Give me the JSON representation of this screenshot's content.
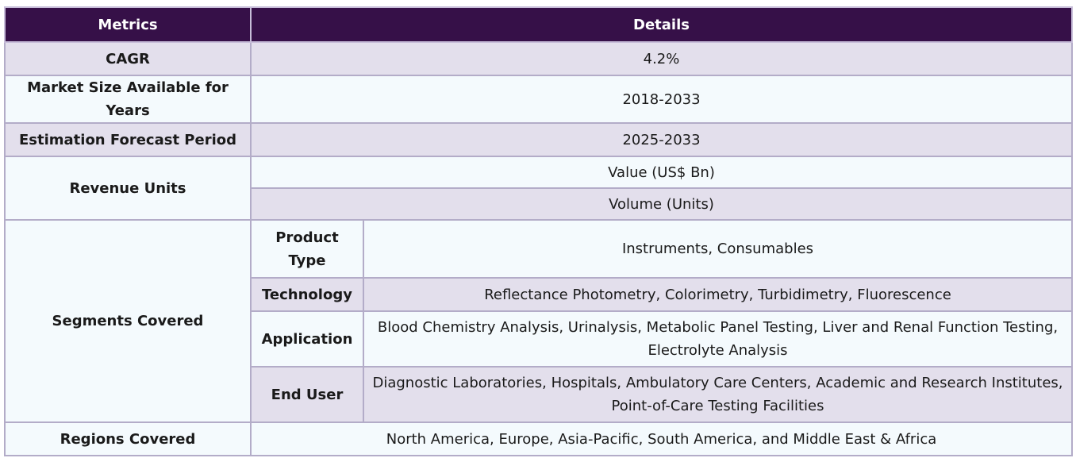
{
  "header": {
    "metrics": "Metrics",
    "details": "Details"
  },
  "rows": {
    "cagr": {
      "label": "CAGR",
      "value": "4.2%"
    },
    "market_size": {
      "label": "Market Size Available for Years",
      "value": "2018-2033"
    },
    "forecast": {
      "label": "Estimation Forecast Period",
      "value": "2025-2033"
    },
    "revenue_units": {
      "label": "Revenue Units",
      "values": [
        "Value (US$ Bn)",
        "Volume (Units)"
      ]
    },
    "segments": {
      "label": "Segments Covered",
      "items": [
        {
          "name": "Product Type",
          "value": "Instruments, Consumables"
        },
        {
          "name": "Technology",
          "value": "Reflectance Photometry, Colorimetry, Turbidimetry, Fluorescence"
        },
        {
          "name": "Application",
          "value": "Blood Chemistry Analysis, Urinalysis, Metabolic Panel Testing, Liver and Renal Function Testing, Electrolyte Analysis"
        },
        {
          "name": "End User",
          "value": "Diagnostic Laboratories, Hospitals, Ambulatory Care Centers, Academic and Research Institutes, Point-of-Care Testing Facilities"
        }
      ]
    },
    "regions": {
      "label": "Regions Covered",
      "value": "North America, Europe, Asia-Pacific, South America, and Middle East & Africa"
    }
  }
}
